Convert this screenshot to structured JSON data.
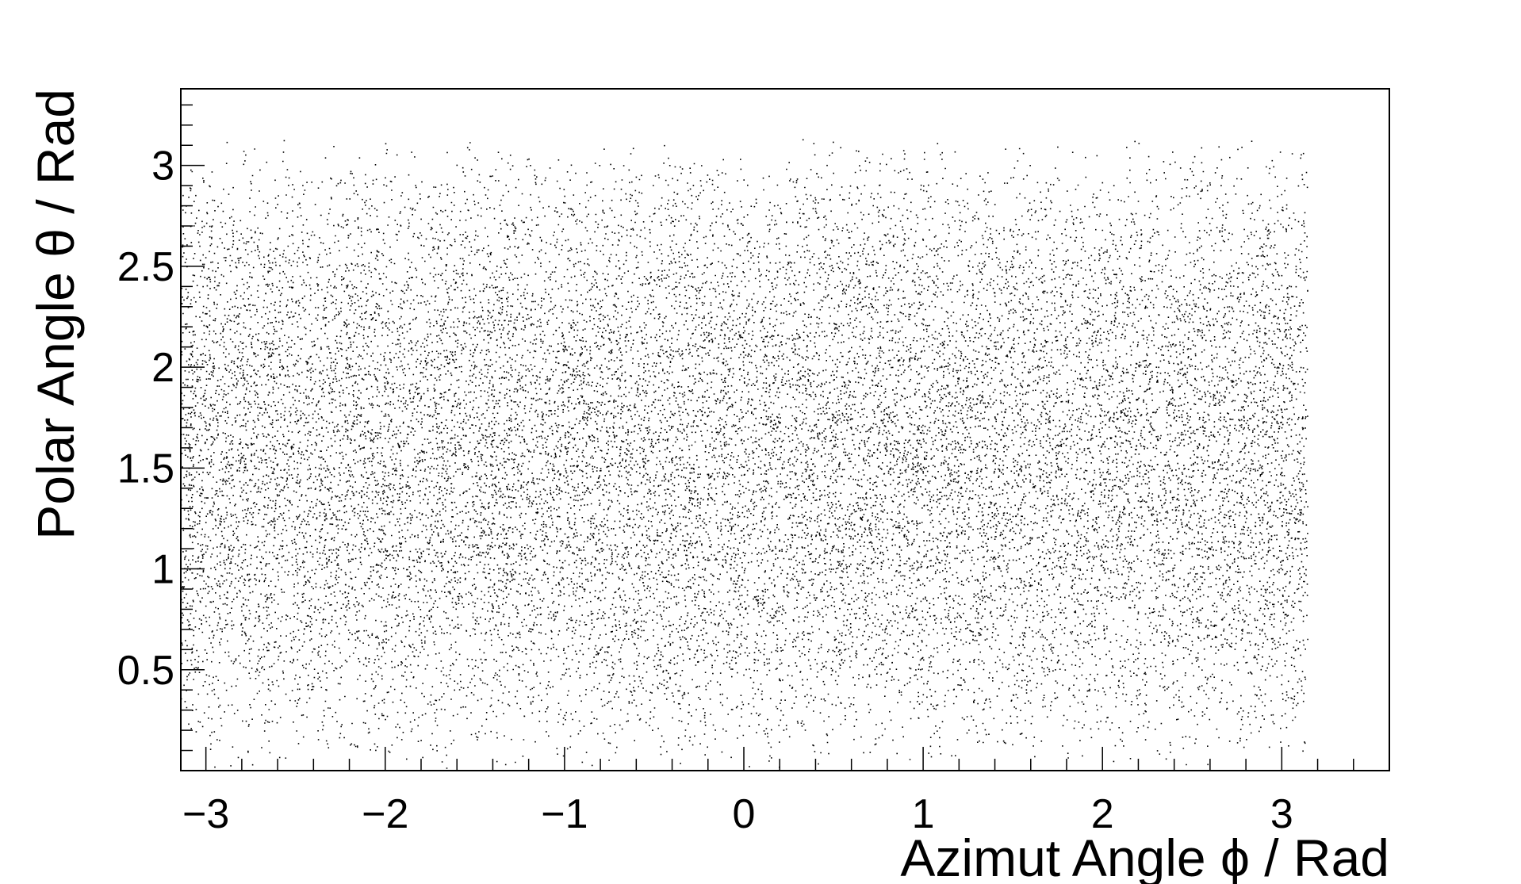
{
  "chart_data": {
    "type": "scatter",
    "title": "",
    "xlabel": "Azimut Angle ϕ / Rad",
    "ylabel": "Polar Angle θ / Rad",
    "xlim": [
      -3.14,
      3.6
    ],
    "ylim": [
      0.0,
      3.38
    ],
    "x_ticks": [
      -3,
      -2,
      -1,
      0,
      1,
      2,
      3
    ],
    "x_tick_labels": [
      "−3",
      "−2",
      "−1",
      "0",
      "1",
      "2",
      "3"
    ],
    "y_ticks": [
      0.5,
      1,
      1.5,
      2,
      2.5,
      3
    ],
    "y_tick_labels": [
      "0.5",
      "1",
      "1.5",
      "2",
      "2.5",
      "3"
    ],
    "x_minor_step": 0.2,
    "y_minor_step": 0.1,
    "grid": false,
    "legend": "none",
    "series": [
      {
        "marker": "dot",
        "color": "#000000",
        "count": 22000,
        "x_range": [
          -3.14159,
          3.14159
        ],
        "y_range": [
          0.0,
          3.14159
        ],
        "x_distribution": "uniform",
        "y_distribution": "sin(theta)"
      }
    ]
  }
}
